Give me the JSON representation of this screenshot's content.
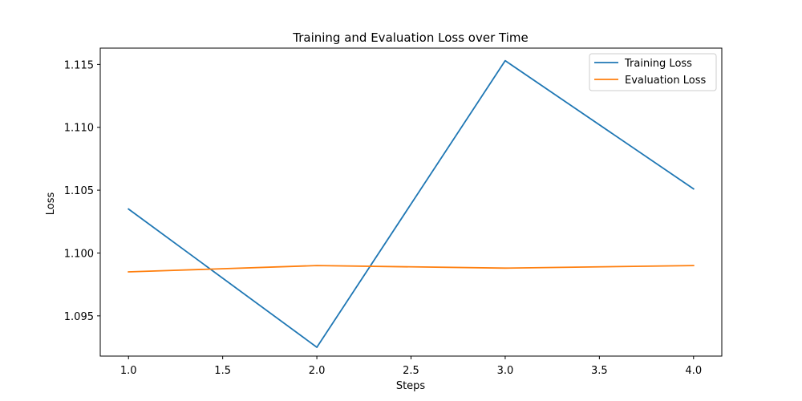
{
  "chart_data": {
    "type": "line",
    "title": "Training and Evaluation Loss over Time",
    "xlabel": "Steps",
    "ylabel": "Loss",
    "xlim": [
      0.85,
      4.15
    ],
    "ylim": [
      1.0918,
      1.1163
    ],
    "xticks": [
      "1.0",
      "1.5",
      "2.0",
      "2.5",
      "3.0",
      "3.5",
      "4.0"
    ],
    "yticks": [
      "1.095",
      "1.100",
      "1.105",
      "1.110",
      "1.115"
    ],
    "grid": false,
    "legend_position": "top-right",
    "x": [
      1,
      2,
      3,
      4
    ],
    "series": [
      {
        "name": "Training Loss",
        "color": "#1f77b4",
        "values": [
          1.1035,
          1.0925,
          1.1153,
          1.1051
        ]
      },
      {
        "name": "Evaluation Loss",
        "color": "#ff7f0e",
        "values": [
          1.0985,
          1.099,
          1.0988,
          1.099
        ]
      }
    ]
  }
}
